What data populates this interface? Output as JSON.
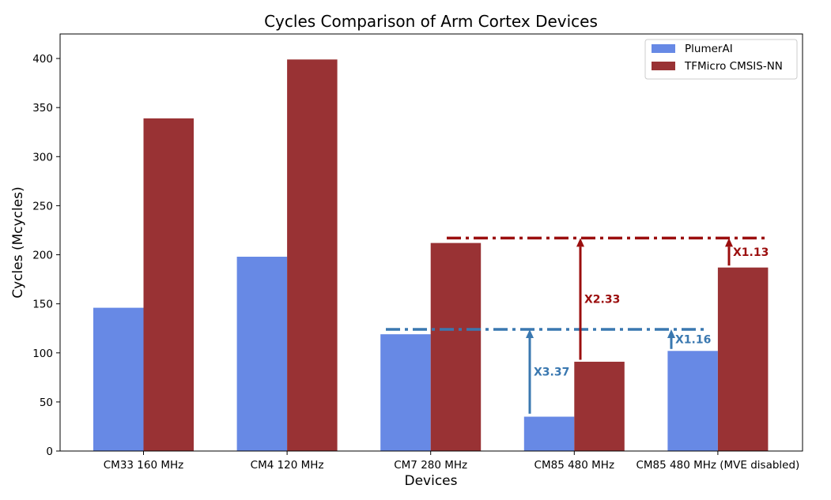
{
  "chart_data": {
    "type": "bar",
    "title": "Cycles Comparison of Arm Cortex Devices",
    "xlabel": "Devices",
    "ylabel": "Cycles (Mcycles)",
    "ylim": [
      0,
      425
    ],
    "yticks": [
      0,
      50,
      100,
      150,
      200,
      250,
      300,
      350,
      400
    ],
    "grid": false,
    "legend_position": "top-right",
    "categories": [
      "CM33 160 MHz",
      "CM4 120 MHz",
      "CM7 280 MHz",
      "CM85 480 MHz",
      "CM85 480 MHz (MVE disabled)"
    ],
    "series": [
      {
        "name": "PlumerAI",
        "color": "#6789e5",
        "values": [
          146,
          198,
          119,
          35,
          102
        ]
      },
      {
        "name": "TFMicro CMSIS-NN",
        "color": "#993234",
        "values": [
          339,
          399,
          212,
          91,
          187
        ]
      }
    ],
    "reference_lines": [
      {
        "value": 124,
        "color": "#3a78b0"
      },
      {
        "value": 217,
        "color": "#9b0e0e"
      }
    ],
    "annotations": [
      {
        "text": "X3.37",
        "color": "#3a78b0",
        "from": 38,
        "to": 124
      },
      {
        "text": "X2.33",
        "color": "#9b0e0e",
        "from": 93,
        "to": 217
      },
      {
        "text": "X1.16",
        "color": "#3a78b0",
        "from": 104,
        "to": 124
      },
      {
        "text": "X1.13",
        "color": "#9b0e0e",
        "from": 189,
        "to": 217
      }
    ]
  }
}
